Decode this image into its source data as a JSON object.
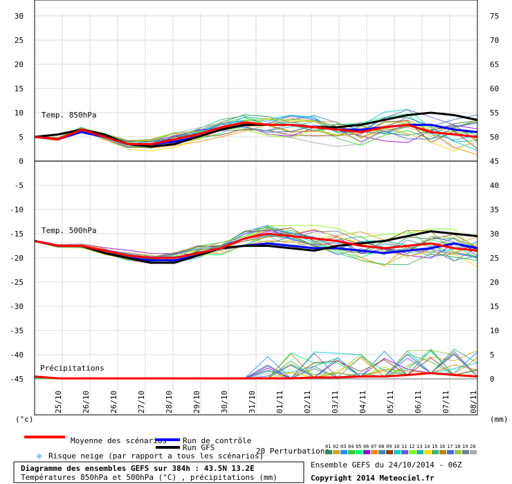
{
  "chart_data": {
    "type": "line",
    "units": {
      "left": "(°c)",
      "right": "(mm)"
    },
    "left_ticks": [
      "30",
      "25",
      "20",
      "15",
      "10",
      "5",
      "0",
      "-5",
      "-10",
      "-15",
      "-20",
      "-25",
      "-30",
      "-35",
      "-40",
      "-45"
    ],
    "right_ticks": [
      "75",
      "70",
      "65",
      "60",
      "55",
      "50",
      "45",
      "40",
      "35",
      "30",
      "25",
      "20",
      "15",
      "10",
      "5",
      "0"
    ],
    "dates": [
      "25/10",
      "26/10",
      "26/10",
      "27/10",
      "28/10",
      "29/10",
      "30/10",
      "31/10",
      "01/11",
      "02/11",
      "03/11",
      "04/11",
      "05/11",
      "06/11",
      "07/11",
      "08/11"
    ],
    "sections": {
      "t850": "Temp. 850hPa",
      "t500": "Temp. 500hPa",
      "precip": "Précipitations"
    },
    "x_range_days": [
      0,
      16
    ],
    "series": [
      {
        "name": "Moyenne des scénarios",
        "color": "#ff0000",
        "t850": [
          5.0,
          4.5,
          6.5,
          5.0,
          3.5,
          3.5,
          4.5,
          5.5,
          7.0,
          8.0,
          7.5,
          7.5,
          7.0,
          6.5,
          6.0,
          7.0,
          7.5,
          6.0,
          5.5,
          5.0
        ],
        "t500": [
          -16.5,
          -17.5,
          -17.5,
          -18.5,
          -19.5,
          -20.0,
          -20.0,
          -19.0,
          -18.0,
          -16.0,
          -15.0,
          -15.5,
          -16.0,
          -16.5,
          -17.5,
          -18.0,
          -17.5,
          -17.0,
          -18.0,
          -18.5
        ],
        "precip": [
          0.5,
          0.1,
          0.1,
          0.1,
          0.1,
          0.1,
          0.1,
          0.1,
          0.1,
          0.1,
          0.1,
          0.1,
          0.3,
          0.3,
          0.5,
          0.5,
          0.8,
          1.2,
          0.8,
          0.5
        ]
      },
      {
        "name": "Run de contrôle",
        "color": "#0000ff",
        "t850": [
          5.0,
          4.5,
          6.0,
          5.0,
          3.5,
          3.5,
          4.0,
          5.0,
          6.5,
          7.5,
          7.5,
          7.5,
          7.0,
          6.5,
          6.5,
          7.0,
          7.5,
          7.5,
          6.5,
          6.0
        ],
        "t500": [
          -16.5,
          -17.5,
          -17.5,
          -19.0,
          -20.0,
          -20.5,
          -20.5,
          -19.5,
          -18.0,
          -17.5,
          -17.0,
          -17.5,
          -18.0,
          -18.0,
          -18.5,
          -19.0,
          -18.5,
          -18.0,
          -17.0,
          -18.0
        ]
      },
      {
        "name": "Run GFS",
        "color": "#000000",
        "t850": [
          5.0,
          5.5,
          6.5,
          5.5,
          3.5,
          3.0,
          3.5,
          5.0,
          6.5,
          7.5,
          7.5,
          7.5,
          7.0,
          7.0,
          7.5,
          8.5,
          9.5,
          10.0,
          9.5,
          8.5
        ],
        "t500": [
          -16.5,
          -17.5,
          -17.5,
          -19.0,
          -20.0,
          -21.0,
          -21.0,
          -19.5,
          -18.0,
          -17.5,
          -17.5,
          -18.0,
          -18.5,
          -17.5,
          -17.0,
          -16.5,
          -15.5,
          -14.5,
          -15.0,
          -15.5
        ]
      }
    ],
    "perturbation_count": 20
  },
  "legend": {
    "mean": "Moyenne des scénarios",
    "control": "Run de contrôle",
    "gfs": "Run GFS",
    "snow": "Risque neige (par rapport a tous les scénarios)",
    "perturbations": "20 Perturbations",
    "perturbation_labels": [
      "01",
      "02",
      "03",
      "04",
      "05",
      "06",
      "07",
      "08",
      "09",
      "10",
      "11",
      "12",
      "13",
      "14",
      "15",
      "16",
      "17",
      "18",
      "19",
      "20"
    ],
    "perturbation_colors": [
      "#2e8b57",
      "#daa520",
      "#1e90ff",
      "#32cd32",
      "#00ff7f",
      "#9400d3",
      "#ff8c00",
      "#4682b4",
      "#8b4513",
      "#00ced1",
      "#6a5acd",
      "#7fff00",
      "#20b2aa",
      "#ffd700",
      "#3cb371",
      "#b8860b",
      "#4169e1",
      "#9acd32",
      "#708090",
      "#a9a9a9"
    ]
  },
  "footer": {
    "title": "Diagramme des ensembles GEFS sur 384h : 43.5N 13.2E",
    "subtitle": "Températures 850hPa et 500hPa (°C) , précipitations (mm)",
    "run": "Ensemble GEFS du 24/10/2014 - 06Z",
    "copyright": "Copyright 2014 Meteociel.fr"
  }
}
